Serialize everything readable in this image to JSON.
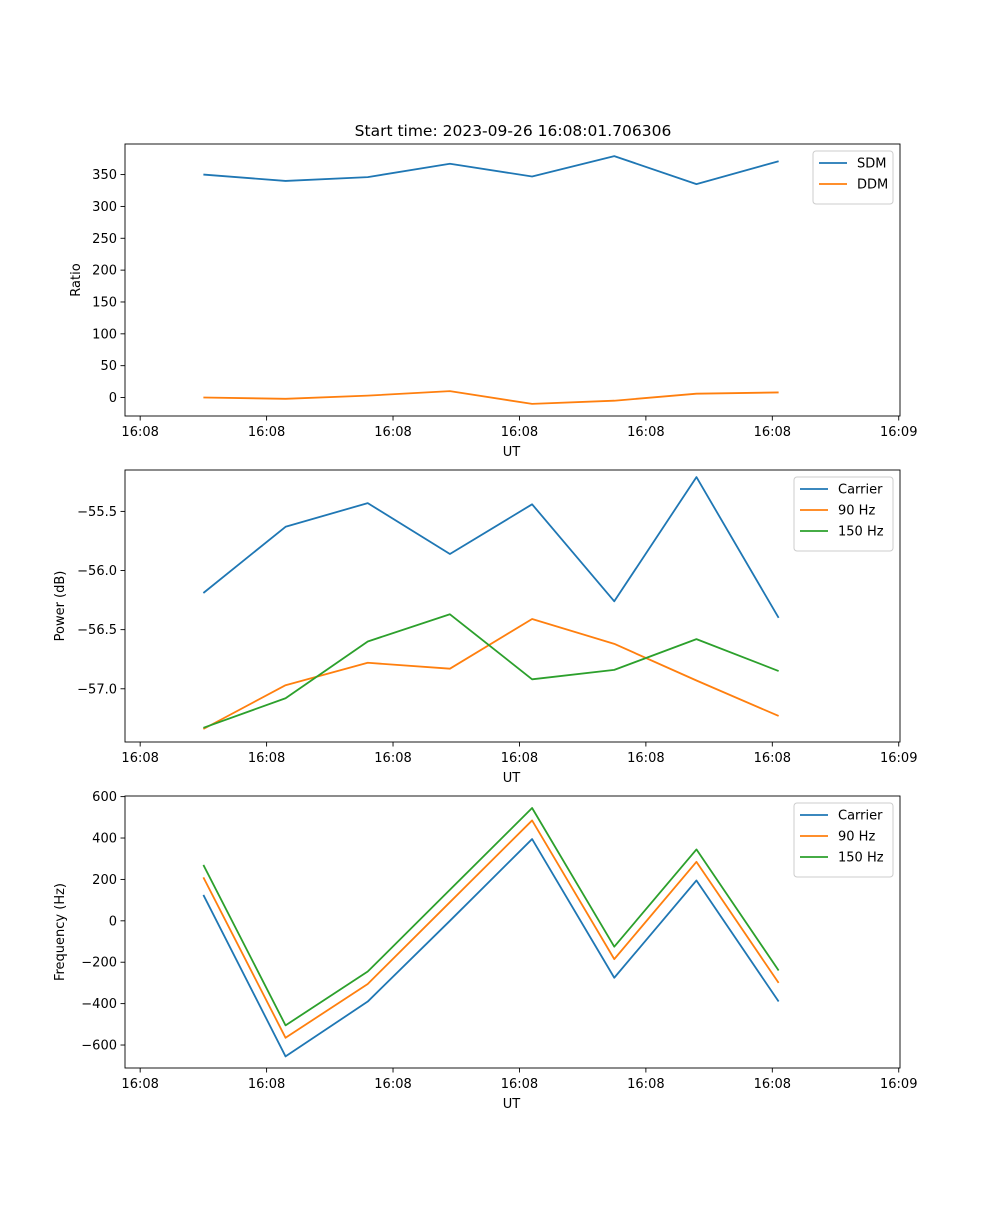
{
  "title": "Start time: 2023-09-26 16:08:01.706306",
  "colors": {
    "blue": "#1f77b4",
    "orange": "#ff7f0e",
    "green": "#2ca02c"
  },
  "chart_data": [
    {
      "type": "line",
      "xlabel": "UT",
      "ylabel": "Ratio",
      "x_tick_labels": [
        "16:08",
        "16:08",
        "16:08",
        "16:08",
        "16:08",
        "16:08",
        "16:09"
      ],
      "x_ticks": [
        0,
        2,
        4,
        6,
        8,
        10,
        12
      ],
      "x": [
        1,
        2.3,
        3.6,
        4.9,
        6.2,
        7.5,
        8.8,
        10.1
      ],
      "xlim": [
        -0.24,
        12.02
      ],
      "ylim": [
        -29,
        398
      ],
      "y_ticks": [
        0,
        50,
        100,
        150,
        200,
        250,
        300,
        350
      ],
      "y_tick_labels": [
        "0",
        "50",
        "100",
        "150",
        "200",
        "250",
        "300",
        "350"
      ],
      "legend_position": "top-right",
      "series": [
        {
          "name": "SDM",
          "color": "#1f77b4",
          "values": [
            350,
            340,
            346,
            367,
            347,
            379,
            335,
            371
          ]
        },
        {
          "name": "DDM",
          "color": "#ff7f0e",
          "values": [
            0,
            -2,
            3,
            10,
            -10,
            -5,
            6,
            8
          ]
        }
      ]
    },
    {
      "type": "line",
      "xlabel": "UT",
      "ylabel": "Power (dB)",
      "x_tick_labels": [
        "16:08",
        "16:08",
        "16:08",
        "16:08",
        "16:08",
        "16:08",
        "16:09"
      ],
      "x_ticks": [
        0,
        2,
        4,
        6,
        8,
        10,
        12
      ],
      "x": [
        1,
        2.3,
        3.6,
        4.9,
        6.2,
        7.5,
        8.8,
        10.1
      ],
      "xlim": [
        -0.24,
        12.02
      ],
      "ylim": [
        -57.45,
        -55.15
      ],
      "y_ticks": [
        -57.0,
        -56.5,
        -56.0,
        -55.5
      ],
      "y_tick_labels": [
        "−57.0",
        "−56.5",
        "−56.0",
        "−55.5"
      ],
      "legend_position": "top-right",
      "series": [
        {
          "name": "Carrier",
          "color": "#1f77b4",
          "values": [
            -56.19,
            -55.63,
            -55.43,
            -55.86,
            -55.44,
            -56.26,
            -55.21,
            -56.4
          ]
        },
        {
          "name": "90 Hz",
          "color": "#ff7f0e",
          "values": [
            -57.34,
            -56.97,
            -56.78,
            -56.83,
            -56.41,
            -56.62,
            -56.93,
            -57.23
          ]
        },
        {
          "name": "150 Hz",
          "color": "#2ca02c",
          "values": [
            -57.33,
            -57.08,
            -56.6,
            -56.37,
            -56.92,
            -56.84,
            -56.58,
            -56.85
          ]
        }
      ]
    },
    {
      "type": "line",
      "xlabel": "UT",
      "ylabel": "Frequency (Hz)",
      "x_tick_labels": [
        "16:08",
        "16:08",
        "16:08",
        "16:08",
        "16:08",
        "16:08",
        "16:09"
      ],
      "x_ticks": [
        0,
        2,
        4,
        6,
        8,
        10,
        12
      ],
      "x": [
        1,
        2.3,
        3.6,
        4.9,
        6.2,
        7.5,
        8.8,
        10.1
      ],
      "xlim": [
        -0.24,
        12.02
      ],
      "ylim": [
        -711,
        603
      ],
      "y_ticks": [
        -600,
        -400,
        -200,
        0,
        200,
        400,
        600
      ],
      "y_tick_labels": [
        "−600",
        "−400",
        "−200",
        "0",
        "200",
        "400",
        "600"
      ],
      "legend_position": "top-right",
      "series": [
        {
          "name": "Carrier",
          "color": "#1f77b4",
          "values": [
            125,
            -655,
            -390,
            0,
            395,
            -275,
            195,
            -390
          ]
        },
        {
          "name": "90 Hz",
          "color": "#ff7f0e",
          "values": [
            210,
            -565,
            -305,
            90,
            485,
            -185,
            285,
            -300
          ]
        },
        {
          "name": "150 Hz",
          "color": "#2ca02c",
          "values": [
            270,
            -505,
            -245,
            150,
            545,
            -125,
            345,
            -240
          ]
        }
      ]
    }
  ]
}
